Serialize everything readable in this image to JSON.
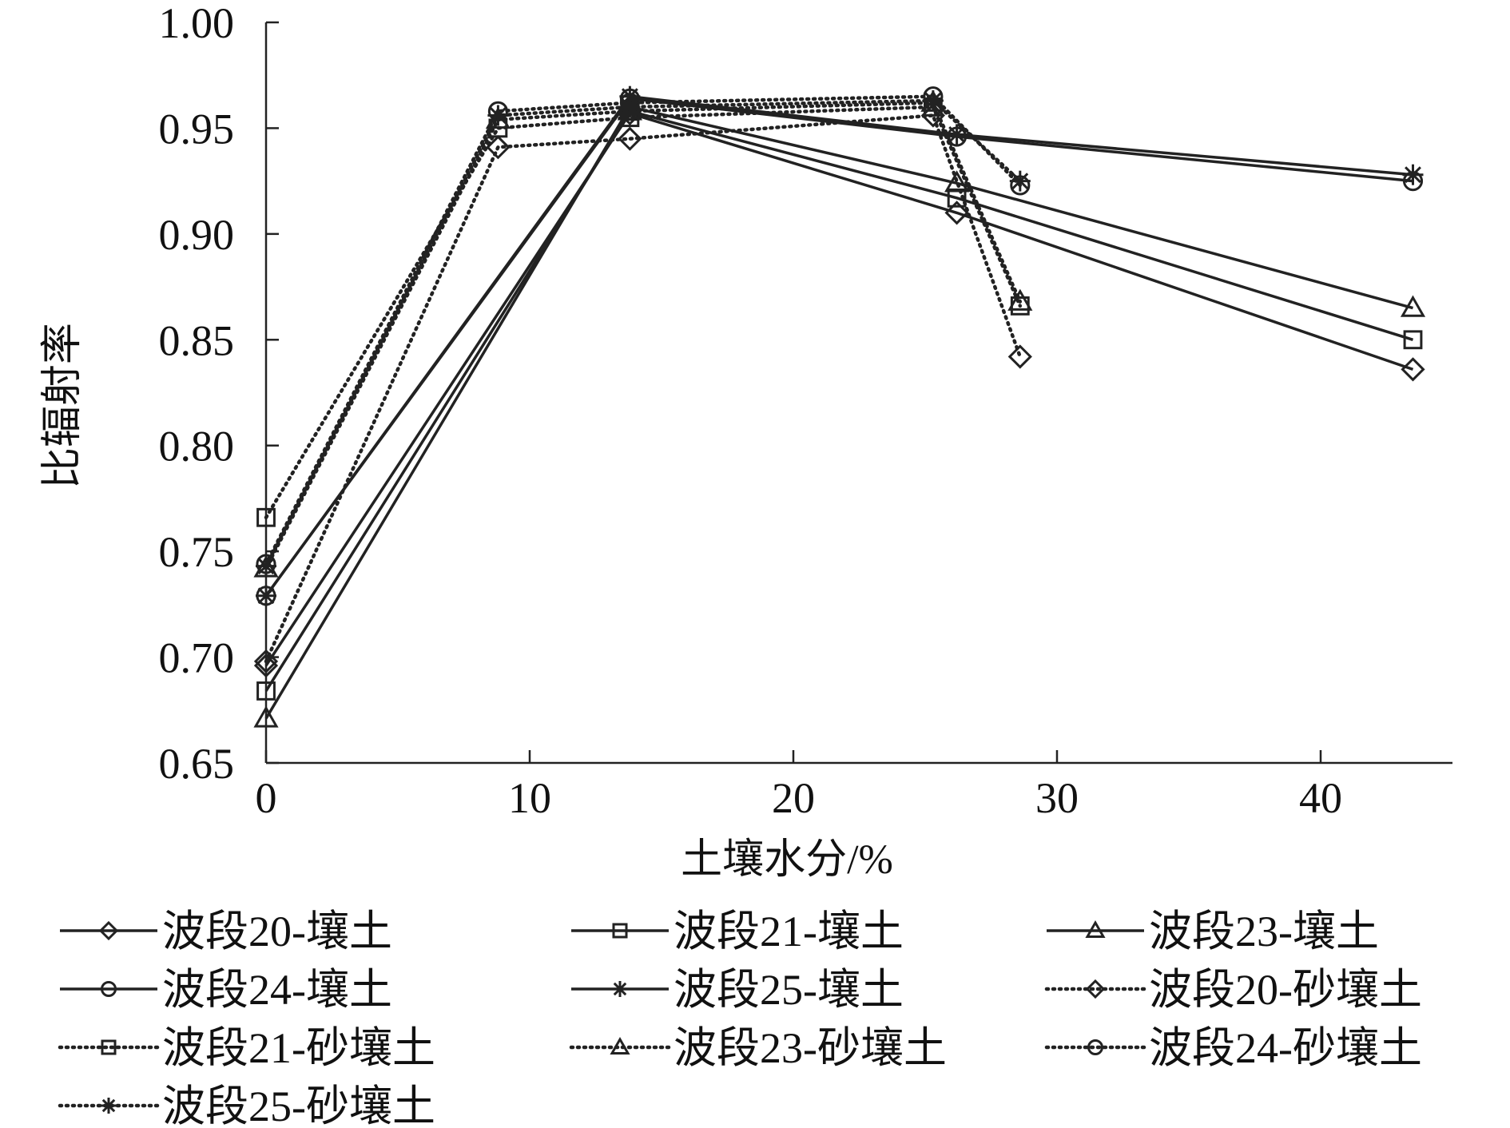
{
  "chart_data": {
    "type": "line",
    "title": "",
    "xlabel": "土壤水分/%",
    "ylabel": "比辐射率",
    "xlim": [
      0,
      45
    ],
    "ylim": [
      0.65,
      1.0
    ],
    "x_ticks": [
      "0",
      "10",
      "20",
      "30",
      "40"
    ],
    "y_ticks": [
      "0.65",
      "0.70",
      "0.75",
      "0.80",
      "0.85",
      "0.90",
      "0.95",
      "1.00"
    ],
    "grid": false,
    "legend_position": "bottom",
    "series": [
      {
        "name": "波段20-壤土",
        "line": "solid",
        "marker": "diamond",
        "x": [
          0,
          13.8,
          26.2,
          43.5
        ],
        "y": [
          0.696,
          0.957,
          0.91,
          0.836
        ]
      },
      {
        "name": "波段21-壤土",
        "line": "solid",
        "marker": "square",
        "x": [
          0,
          13.8,
          26.2,
          43.5
        ],
        "y": [
          0.684,
          0.958,
          0.917,
          0.85
        ]
      },
      {
        "name": "波段23-壤土",
        "line": "solid",
        "marker": "triangle",
        "x": [
          0,
          13.8,
          26.2,
          43.5
        ],
        "y": [
          0.671,
          0.96,
          0.924,
          0.865
        ]
      },
      {
        "name": "波段24-壤土",
        "line": "solid",
        "marker": "circle",
        "x": [
          0,
          13.8,
          26.2,
          43.5
        ],
        "y": [
          0.729,
          0.964,
          0.946,
          0.925
        ]
      },
      {
        "name": "波段25-壤土",
        "line": "solid",
        "marker": "asterisk",
        "x": [
          0,
          13.8,
          26.2,
          43.5
        ],
        "y": [
          0.729,
          0.965,
          0.947,
          0.928
        ]
      },
      {
        "name": "波段20-砂壤土",
        "line": "dotted",
        "marker": "diamond",
        "x": [
          0,
          8.8,
          13.8,
          25.3,
          28.6
        ],
        "y": [
          0.698,
          0.941,
          0.945,
          0.956,
          0.842
        ]
      },
      {
        "name": "波段21-砂壤土",
        "line": "dotted",
        "marker": "square",
        "x": [
          0,
          8.8,
          13.8,
          25.3,
          28.6
        ],
        "y": [
          0.766,
          0.95,
          0.955,
          0.96,
          0.866
        ]
      },
      {
        "name": "波段23-砂壤土",
        "line": "dotted",
        "marker": "triangle",
        "x": [
          0,
          8.8,
          13.8,
          25.3,
          28.6
        ],
        "y": [
          0.742,
          0.954,
          0.958,
          0.962,
          0.868
        ]
      },
      {
        "name": "波段24-砂壤土",
        "line": "dotted",
        "marker": "circle",
        "x": [
          0,
          8.8,
          13.8,
          25.3,
          28.6
        ],
        "y": [
          0.744,
          0.958,
          0.962,
          0.965,
          0.923
        ]
      },
      {
        "name": "波段25-砂壤土",
        "line": "dotted",
        "marker": "asterisk",
        "x": [
          0,
          8.8,
          13.8,
          25.3,
          28.6
        ],
        "y": [
          0.743,
          0.956,
          0.96,
          0.963,
          0.925
        ]
      }
    ]
  }
}
